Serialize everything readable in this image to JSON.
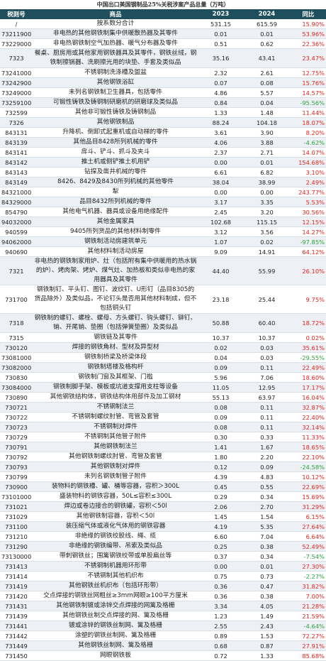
{
  "title": "中国出口美国钢制品25%关税涉案产品总量（万吨）",
  "header": [
    "税则号",
    "商品",
    "2023",
    "2024",
    "同比"
  ],
  "rows": [
    [
      "/",
      "按系数分合计",
      "531.15",
      "615.59",
      "15.90%"
    ],
    [
      "73211900",
      "非电热的其他钢铁制集中供暖散热器及其零件",
      "0.01",
      "0.01",
      "53.96%"
    ],
    [
      "73229000",
      "非电热钢铁制空气加热器、暖气分布器及零件",
      "0.51",
      "0.62",
      "22.36%"
    ],
    [
      "7323",
      "餐桌、厨房用或其他家用钢铁器具及其零件，钢铁丝绒，钢铁制擦锅器、洗刷擦光用的块垫、手套及类似品",
      "35.16",
      "43.41",
      "23.47%"
    ],
    [
      "73241000",
      "不锈钢制洗涤槽及盥盆",
      "2.32",
      "2.61",
      "12.75%"
    ],
    [
      "73242900",
      "其他钢铁浴缸",
      "0.07",
      "0.08",
      "15.76%"
    ],
    [
      "73249000",
      "未列名钢铁制卫生器具，包括零件",
      "4.86",
      "5.57",
      "14.57%"
    ],
    [
      "73259100",
      "可锻性铸铁及铸钢制研磨机的研磨球及类似品",
      "0.84",
      "0.04",
      "-95.56%"
    ],
    [
      "732599",
      "其他非可锻性铸铁及铸钢制品",
      "1.33",
      "1.48",
      "11.44%"
    ],
    [
      "7326",
      "其他钢铁制品",
      "88.24",
      "104.18",
      "18.07%"
    ],
    [
      "843131",
      "升降机、倒卸式起重机或自动梯的零件",
      "3.61",
      "3.90",
      "8.20%"
    ],
    [
      "843139",
      "其他品目8428所列机械的零件",
      "4.06",
      "3.88",
      "-4.62%"
    ],
    [
      "843141",
      "戽斗、铲斗、抓斗及夹斗",
      "2.37",
      "2.71",
      "14.07%"
    ],
    [
      "843142",
      "推土机或侧铲推土机用铲",
      "0.00",
      "0.01",
      "154.68%"
    ],
    [
      "843143",
      "钻探及凿井机械的零件",
      "6.61",
      "6.82",
      "3.10%"
    ],
    [
      "843149",
      "8426、8429及8430所列机械的其他零件",
      "38.04",
      "38.99",
      "2.49%"
    ],
    [
      "84321000",
      "犁",
      "0.00",
      "0.00",
      "243.77%"
    ],
    [
      "84329000",
      "品目8432所列机械的零件",
      "3.17",
      "3.35",
      "5.53%"
    ],
    [
      "854790",
      "其他电气机器、器具或设备用绝缘配件",
      "2.45",
      "3.20",
      "30.56%"
    ],
    [
      "94032000",
      "其他金属家具",
      "102.68",
      "115.15",
      "12.15%"
    ],
    [
      "940599",
      "9405所列货品的其他材料制零件",
      "3.12",
      "3.56",
      "14.27%"
    ],
    [
      "94062000",
      "钢铁制活动房建筑单元",
      "1.07",
      "0.02",
      "-97.85%"
    ],
    [
      "940690",
      "其他材料制活动房屋",
      "9.09",
      "14.91",
      "64.12%"
    ],
    [
      "7321",
      "非电热的钢铁制家用炉、灶（包括附有集中供暖用的热水锅的炉）、烤肉架、烤炉、煤气灶、加热板和类似非电热的家用器具及其零件",
      "44.40",
      "55.99",
      "26.10%"
    ],
    [
      "731700",
      "钢铁制钉、平头钉、图钉、波纹钉、U形钉（品目8305的货品除外）及类似品，不论钉头是否用其他材料制成，但不包括铜头钉",
      "23.18",
      "25.44",
      "9.75%"
    ],
    [
      "7318",
      "钢铁制的螺钉、螺栓、螺母、方头螺钉、钩头螺钉、铆钉、销、开尾销、垫圈（包括弹簧垫圈）及类似品",
      "50.88",
      "60.40",
      "18.72%"
    ],
    [
      "7315",
      "钢铁链及其零件",
      "10.37",
      "10.37",
      "0.02%"
    ],
    [
      "730120",
      "焊接的钢铁角材、型材及异型材",
      "0.02",
      "0.03",
      "35.61%"
    ],
    [
      "73081000",
      "钢铁制桥梁及桥梁体段",
      "0.04",
      "0.03",
      "-29.55%"
    ],
    [
      "73082000",
      "钢铁制塔楼及格构杆",
      "0.09",
      "0.11",
      "22.49%"
    ],
    [
      "730830",
      "钢铁制门窗及其框架、门槛",
      "5.96",
      "7.06",
      "18.60%"
    ],
    [
      "73084000",
      "钢铁制脚手架、模板或坑道支撑用支柱等设备",
      "11.05",
      "12.95",
      "17.17%"
    ],
    [
      "730890",
      "其他钢铁结构体，钢铁结构体用部件及加工钢材",
      "55.13",
      "63.97",
      "16.04%"
    ],
    [
      "730721",
      "不锈钢制法兰",
      "0.08",
      "0.11",
      "32.87%"
    ],
    [
      "730722",
      "不锈钢制螺纹肘管、弯管及套管",
      "0.09",
      "0.11",
      "22.40%"
    ],
    [
      "730723",
      "不锈钢制对焊件",
      "0.08",
      "0.11",
      "32.14%"
    ],
    [
      "730729",
      "不锈钢制其他管子附件",
      "0.30",
      "0.33",
      "11.33%"
    ],
    [
      "730791",
      "其他钢铁制法兰",
      "1.41",
      "1.67",
      "18.65%"
    ],
    [
      "730792",
      "其他钢铁制螺纹肘管、弯管及套管",
      "1.80",
      "2.20",
      "22.10%"
    ],
    [
      "730793",
      "其他钢铁制对焊件",
      "0.12",
      "0.09",
      "-24.58%"
    ],
    [
      "730799",
      "未列名钢铁制管子附件",
      "4.39",
      "4.83",
      "10.12%"
    ],
    [
      "730900",
      "装物料的钢铁槽、罐、桶等容器，容积＞300L",
      "0.45",
      "0.55",
      "22.69%"
    ],
    [
      "73101000",
      "盛装物料的钢铁容器，50L≤容积≤300L",
      "0.29",
      "0.34",
      "15.69%"
    ],
    [
      "731021",
      "焊边或卷边接合的钢铁罐，容积＜50l",
      "2.06",
      "2.70",
      "31.29%"
    ],
    [
      "731029",
      "其他钢铁制容器，容积＜50l",
      "1.45",
      "1.54",
      "6.15%"
    ],
    [
      "731100",
      "装压缩气体或液化气体用的钢铁容器",
      "4.19",
      "5.35",
      "27.64%"
    ],
    [
      "731210",
      "非绝缘的钢铁绞股线、绳、缆",
      "6.60",
      "7.04",
      "6.64%"
    ],
    [
      "731290",
      "非绝缘的钢铁编带、吊索及类似品",
      "0.25",
      "0.38",
      "52.49%"
    ],
    [
      "73130000",
      "带刺钢铁丝；围篱钢铁绞带或单股扁丝等",
      "0.37",
      "0.34",
      "-7.54%"
    ],
    [
      "731413",
      "不锈钢制机器用环形带",
      "0.00",
      "0.01",
      "27.30%"
    ],
    [
      "731414",
      "不锈钢制其他机织布",
      "0.75",
      "0.73",
      "-2.27%"
    ],
    [
      "731419",
      "其他钢铁丝机织布（包括环形带）",
      "0.36",
      "0.47",
      "31.82%"
    ],
    [
      "731420",
      "交点焊接的钢铁丝网粗丝≥3mm网眼≥100平方厘米",
      "0.36",
      "0.38",
      "7.00%"
    ],
    [
      "731431",
      "其他钢铁制镀或涂锌交点焊接的网篱及格栅",
      "3.34",
      "4.05",
      "21.28%"
    ],
    [
      "731439",
      "其他钢铁丝制交点焊接的网、篱及格栅",
      "1.23",
      "1.49",
      "21.59%"
    ],
    [
      "731441",
      "镀或涂锌的钢铁丝制网、篱及格栅",
      "2.55",
      "2.43",
      "-4.64%"
    ],
    [
      "731442",
      "涂塑的钢铁丝制网、篱及格栅",
      "0.89",
      "1.53",
      "72.27%"
    ],
    [
      "731449",
      "其他钢铁丝制网、篱及格栅",
      "0.68",
      "0.87",
      "27.91%"
    ],
    [
      "731450",
      "网眼钢铁板",
      "0.72",
      "1.33",
      "85.68%"
    ]
  ]
}
